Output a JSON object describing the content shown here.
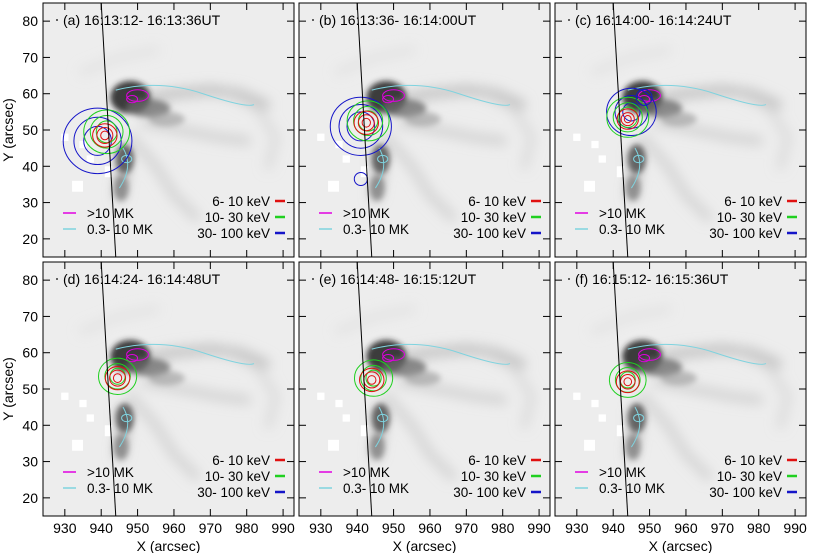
{
  "chart_data": {
    "type": "heatmap",
    "description_axes": {
      "xlabel": "X (arcsec)",
      "ylabel": "Y (arcsec)",
      "xlim": [
        924,
        993
      ],
      "ylim": [
        15,
        85
      ],
      "xticks": [
        930,
        940,
        950,
        960,
        970,
        980,
        990
      ],
      "yticks": [
        20,
        30,
        40,
        50,
        60,
        70,
        80
      ]
    },
    "legend": {
      "temperature": [
        {
          "label": ">10 MK",
          "color": "#e000e0"
        },
        {
          "label": "0.3- 10 MK",
          "color": "#7fd3df"
        }
      ],
      "energy": [
        {
          "label": "6- 10 keV",
          "color": "#e01010"
        },
        {
          "label": "10- 30 keV",
          "color": "#20d020"
        },
        {
          "label": "30- 100 keV",
          "color": "#1515c8"
        }
      ]
    },
    "panels": [
      {
        "label": "(a)",
        "time": "16:13:12- 16:13:36UT",
        "sources": {
          "red": {
            "x": 941,
            "y": 48.5,
            "r": [
              3.2,
              2.2,
              1.2
            ]
          },
          "green": {
            "x": 941.5,
            "y": 49.5,
            "r": [
              6,
              4.5,
              3
            ]
          },
          "blue": {
            "x": 939,
            "y": 47,
            "r": [
              9,
              6.5,
              4
            ]
          }
        },
        "extra_blue": []
      },
      {
        "label": "(b)",
        "time": "16:13:36- 16:14:00UT",
        "sources": {
          "red": {
            "x": 942.5,
            "y": 52,
            "r": [
              3.2,
              2.2,
              1.2
            ]
          },
          "green": {
            "x": 943,
            "y": 52.5,
            "r": [
              5.5,
              4,
              2.8
            ]
          },
          "blue": {
            "x": 941,
            "y": 51,
            "r": [
              8,
              6,
              4
            ]
          }
        },
        "extra_blue": [
          {
            "x": 941,
            "y": 36.5,
            "r": 1.8
          }
        ]
      },
      {
        "label": "(c)",
        "time": "16:14:00- 16:14:24UT",
        "sources": {
          "red": {
            "x": 944,
            "y": 53,
            "r": [
              2.8,
              1.8,
              1
            ]
          },
          "green": {
            "x": 944,
            "y": 53.5,
            "r": [
              5.5,
              4,
              2.8
            ]
          },
          "blue": {
            "x": 945,
            "y": 55,
            "r": [
              6.5,
              4.5,
              2.5
            ]
          }
        },
        "extra_blue": [
          {
            "x": 948.5,
            "y": 59,
            "r": 2.2
          }
        ]
      },
      {
        "label": "(d)",
        "time": "16:14:24- 16:14:48UT",
        "sources": {
          "red": {
            "x": 944.5,
            "y": 53,
            "r": [
              3.2,
              2.2,
              1.2
            ]
          },
          "green": {
            "x": 944.5,
            "y": 53.5,
            "r": [
              5,
              3.5,
              2.2
            ]
          },
          "blue": null
        },
        "extra_blue": []
      },
      {
        "label": "(e)",
        "time": "16:14:48- 16:15:12UT",
        "sources": {
          "red": {
            "x": 944,
            "y": 52.5,
            "r": [
              3.2,
              2.2,
              1.2
            ]
          },
          "green": {
            "x": 944.5,
            "y": 53,
            "r": [
              5,
              3.5,
              2.2
            ]
          },
          "blue": null
        },
        "extra_blue": []
      },
      {
        "label": "(f)",
        "time": "16:15:12- 16:15:36UT",
        "sources": {
          "red": {
            "x": 944,
            "y": 52,
            "r": [
              3,
              2,
              1.1
            ]
          },
          "green": {
            "x": 944,
            "y": 52.5,
            "r": [
              4.8,
              3.4,
              2.2
            ]
          },
          "blue": null
        },
        "extra_blue": []
      }
    ],
    "limb_line": {
      "x_top": 940,
      "x_bottom": 944
    },
    "grid": false
  }
}
